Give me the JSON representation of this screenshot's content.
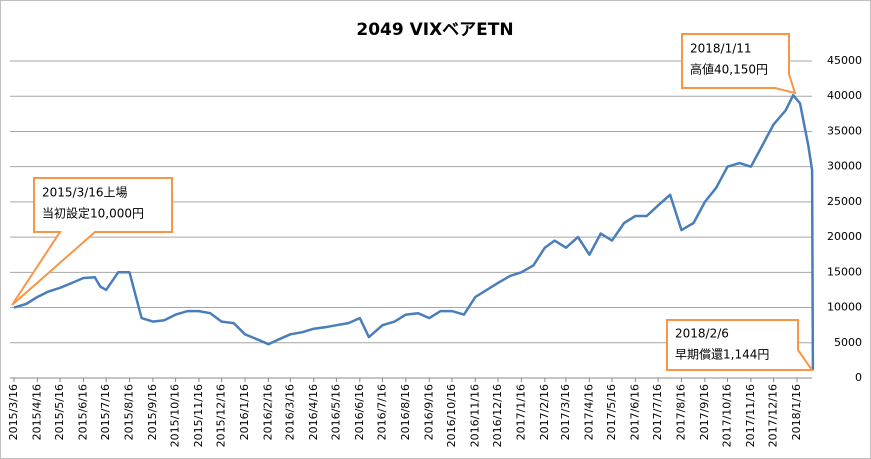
{
  "chart_data": {
    "type": "line",
    "title": "2049 VIXベアETN",
    "x": [
      "2015/3/16",
      "2015/4/1",
      "2015/4/16",
      "2015/5/1",
      "2015/5/16",
      "2015/6/1",
      "2015/6/16",
      "2015/7/1",
      "2015/7/8",
      "2015/7/16",
      "2015/8/1",
      "2015/8/16",
      "2015/9/1",
      "2015/9/16",
      "2015/10/1",
      "2015/10/16",
      "2015/11/1",
      "2015/11/16",
      "2015/12/1",
      "2015/12/16",
      "2016/1/1",
      "2016/1/16",
      "2016/2/1",
      "2016/2/16",
      "2016/3/1",
      "2016/3/16",
      "2016/4/1",
      "2016/4/16",
      "2016/5/1",
      "2016/5/16",
      "2016/6/1",
      "2016/6/16",
      "2016/6/28",
      "2016/7/16",
      "2016/8/1",
      "2016/8/16",
      "2016/9/1",
      "2016/9/16",
      "2016/10/1",
      "2016/10/16",
      "2016/11/1",
      "2016/11/16",
      "2016/12/1",
      "2016/12/16",
      "2017/1/1",
      "2017/1/16",
      "2017/2/1",
      "2017/2/16",
      "2017/3/1",
      "2017/3/16",
      "2017/4/1",
      "2017/4/16",
      "2017/5/1",
      "2017/5/16",
      "2017/6/1",
      "2017/6/16",
      "2017/7/1",
      "2017/7/16",
      "2017/8/1",
      "2017/8/16",
      "2017/9/1",
      "2017/9/16",
      "2017/10/1",
      "2017/10/16",
      "2017/11/1",
      "2017/11/16",
      "2017/12/1",
      "2017/12/16",
      "2018/1/1",
      "2018/1/11",
      "2018/1/20",
      "2018/1/31",
      "2018/2/5",
      "2018/2/6"
    ],
    "series": [
      {
        "name": "2049 VIXベアETN",
        "color": "#4a7ebb",
        "values": [
          10000,
          10500,
          11500,
          12300,
          12800,
          13500,
          14200,
          14300,
          13000,
          12500,
          15000,
          15000,
          8500,
          8000,
          8200,
          9000,
          9500,
          9500,
          9200,
          8000,
          7800,
          6200,
          5500,
          4800,
          5500,
          6200,
          6500,
          7000,
          7200,
          7500,
          7800,
          8500,
          5800,
          7500,
          8000,
          9000,
          9200,
          8500,
          9500,
          9500,
          9000,
          11500,
          12500,
          13500,
          14500,
          15000,
          16000,
          18500,
          19500,
          18500,
          20000,
          17500,
          20500,
          19500,
          22000,
          23000,
          23000,
          24500,
          26000,
          21000,
          22000,
          25000,
          27000,
          30000,
          30500,
          30000,
          33000,
          36000,
          38000,
          40150,
          39000,
          33000,
          29500,
          1144
        ]
      }
    ],
    "xticks": [
      "2015/3/16",
      "2015/4/16",
      "2015/5/16",
      "2015/6/16",
      "2015/7/16",
      "2015/8/16",
      "2015/9/16",
      "2015/10/16",
      "2015/11/16",
      "2015/12/16",
      "2016/1/16",
      "2016/2/16",
      "2016/3/16",
      "2016/4/16",
      "2016/5/16",
      "2016/6/16",
      "2016/7/16",
      "2016/8/16",
      "2016/9/16",
      "2016/10/16",
      "2016/11/16",
      "2016/12/16",
      "2017/1/16",
      "2017/2/16",
      "2017/3/16",
      "2017/4/16",
      "2017/5/16",
      "2017/6/16",
      "2017/7/16",
      "2017/8/16",
      "2017/9/16",
      "2017/10/16",
      "2017/11/16",
      "2017/12/16",
      "2018/1/16"
    ],
    "ylim": [
      0,
      45000
    ],
    "yticks": [
      0,
      5000,
      10000,
      15000,
      20000,
      25000,
      30000,
      35000,
      40000,
      45000
    ],
    "grid": true,
    "annotations": [
      {
        "lines": [
          "2015/3/16上場",
          "当初設定10,000円"
        ]
      },
      {
        "lines": [
          "2018/1/11",
          "高値40,150円"
        ]
      },
      {
        "lines": [
          "2018/2/6",
          "早期償還1,144円"
        ]
      }
    ]
  }
}
